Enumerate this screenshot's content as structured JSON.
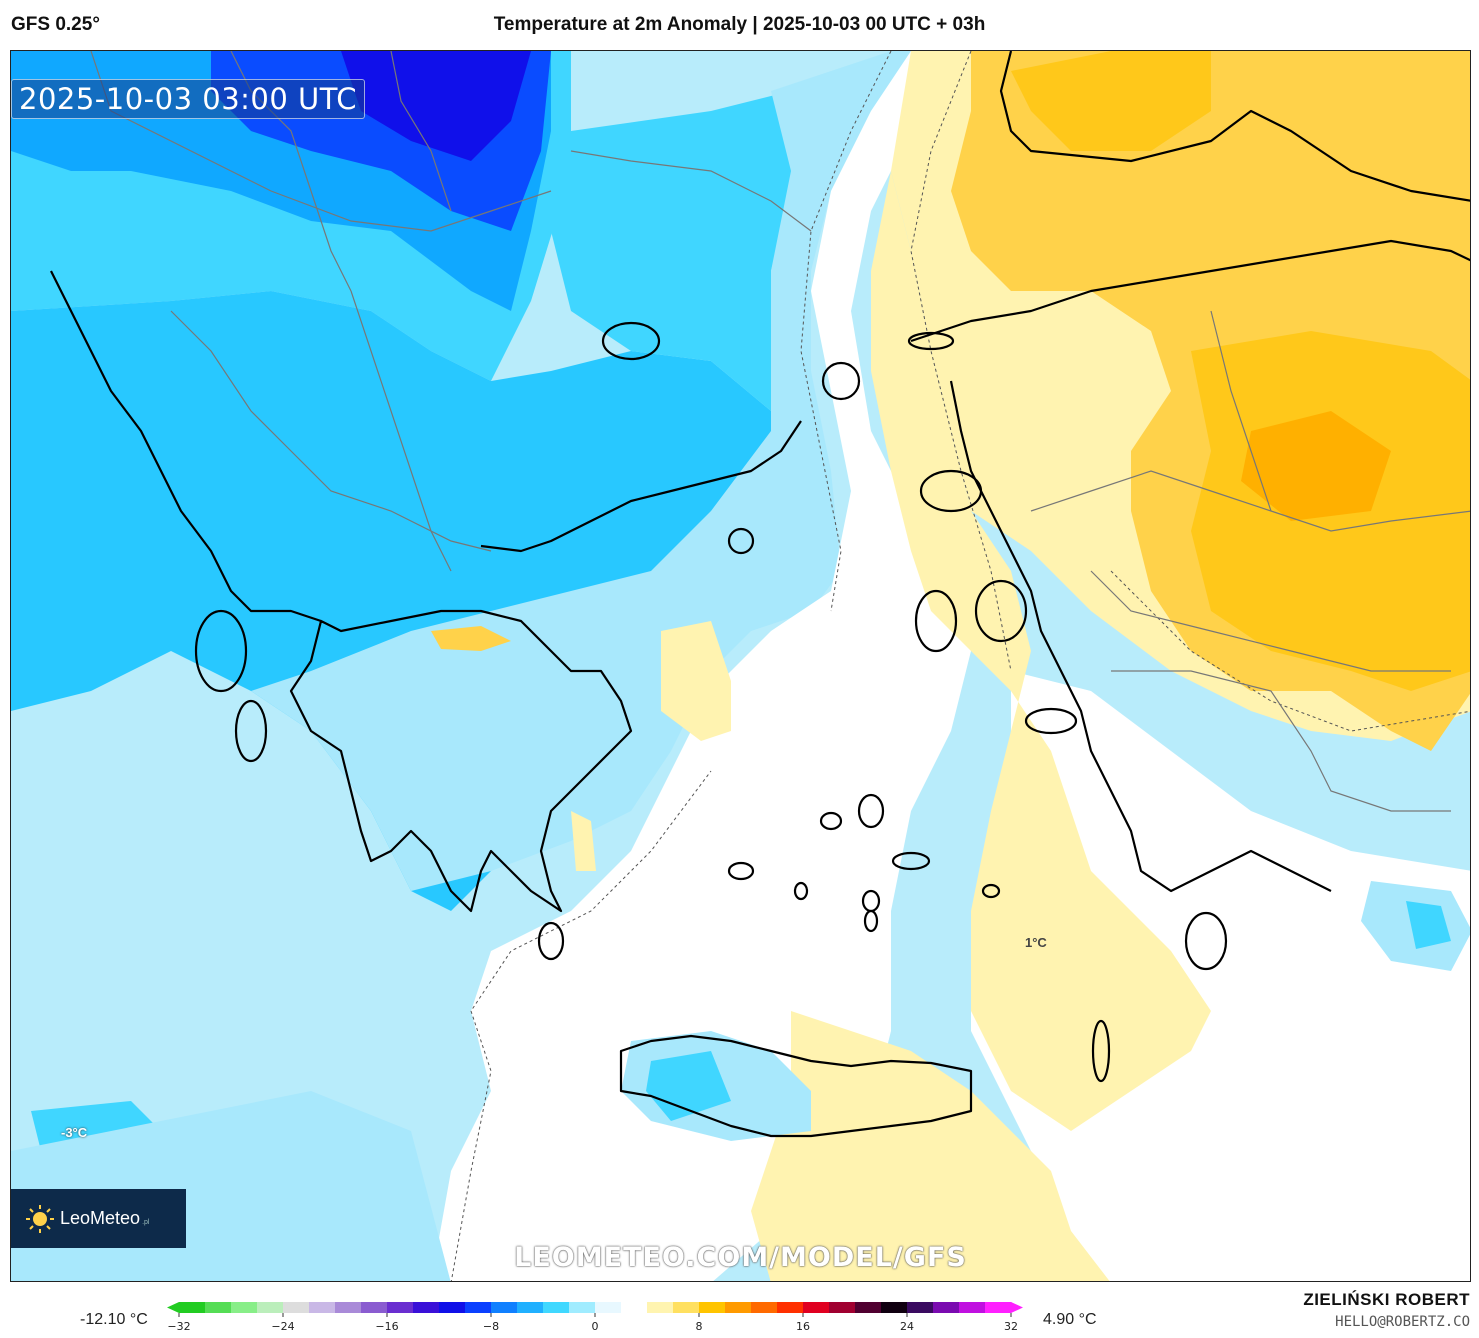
{
  "header": {
    "model": "GFS 0.25°",
    "title": "Temperature at 2m Anomaly | 2025-10-03 00 UTC + 03h"
  },
  "map": {
    "timestamp": "2025-10-03 03:00 UTC",
    "watermark": "LEOMETEO.COM/MODEL/GFS",
    "logo": {
      "name": "LeoMeteo",
      "suffix": ".pl"
    },
    "labels": [
      {
        "text": "1°C"
      },
      {
        "text": "-3°C"
      }
    ]
  },
  "legend": {
    "min_label": "-12.10 °C",
    "max_label": "4.90 °C",
    "ticks": [
      "-32",
      "-24",
      "-16",
      "-8",
      "0",
      "8",
      "16",
      "24",
      "32"
    ],
    "range": [
      -32,
      32
    ],
    "colors": [
      "#22cc22",
      "#55dd55",
      "#88ee88",
      "#bbeebb",
      "#dddddd",
      "#c9b8e6",
      "#a98ad8",
      "#8a5cd0",
      "#6a2ed0",
      "#3a10d8",
      "#1010e8",
      "#0a40ff",
      "#1080ff",
      "#20b0ff",
      "#40d8ff",
      "#a0ecff",
      "#e8f8ff",
      "#ffffff",
      "#fff4b0",
      "#ffe060",
      "#ffc400",
      "#ff9a00",
      "#ff6a00",
      "#ff3000",
      "#e00020",
      "#a00030",
      "#500030",
      "#100010",
      "#3a0a60",
      "#7a0ab0",
      "#c010e0",
      "#ff20ff"
    ]
  },
  "footer": {
    "author": "ZIELIŃSKI ROBERT",
    "email": "HELLO@ROBERTZ.CO"
  }
}
